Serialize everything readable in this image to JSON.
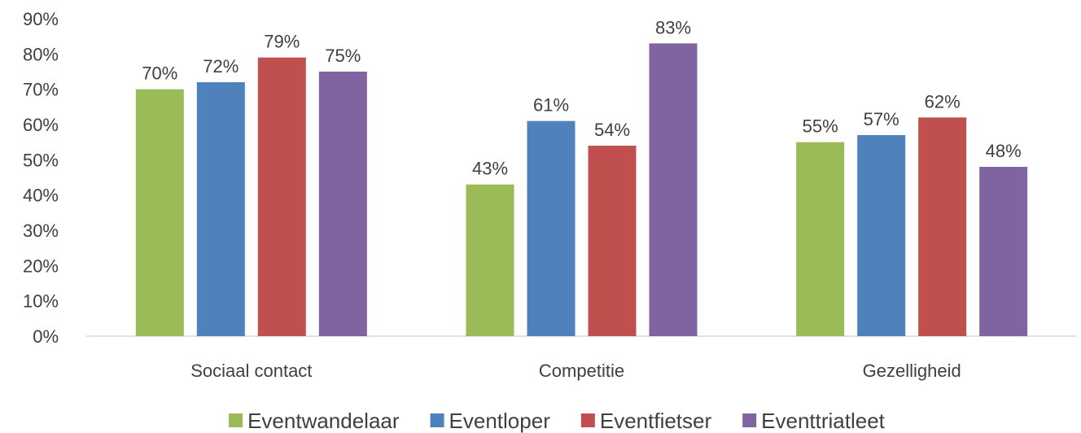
{
  "chart_data": {
    "type": "bar",
    "title": "",
    "xlabel": "",
    "ylabel": "",
    "ylim": [
      0,
      90
    ],
    "y_ticks": [
      "0%",
      "10%",
      "20%",
      "30%",
      "40%",
      "50%",
      "60%",
      "70%",
      "80%",
      "90%"
    ],
    "categories": [
      "Sociaal contact",
      "Competitie",
      "Gezelligheid"
    ],
    "series": [
      {
        "name": "Eventwandelaar",
        "color": "#9BBB59",
        "values": [
          70,
          43,
          55
        ],
        "labels": [
          "70%",
          "43%",
          "55%"
        ]
      },
      {
        "name": "Eventloper",
        "color": "#4F81BD",
        "values": [
          72,
          61,
          57
        ],
        "labels": [
          "72%",
          "61%",
          "57%"
        ]
      },
      {
        "name": "Eventfietser",
        "color": "#C0504D",
        "values": [
          79,
          54,
          62
        ],
        "labels": [
          "79%",
          "54%",
          "62%"
        ]
      },
      {
        "name": "Eventtriatleet",
        "color": "#8064A2",
        "values": [
          75,
          83,
          48
        ],
        "labels": [
          "75%",
          "83%",
          "48%"
        ]
      }
    ],
    "grid": false,
    "legend_position": "bottom"
  }
}
